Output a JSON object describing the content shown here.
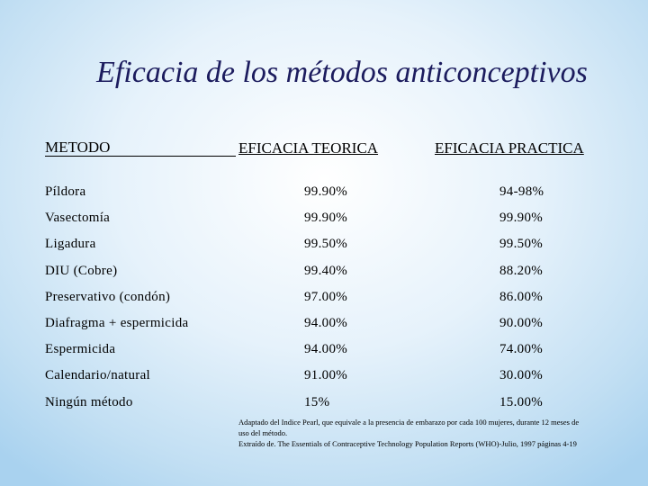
{
  "title": "Eficacia de los métodos anticonceptivos",
  "table": {
    "header": [
      "METODO",
      "EFICACIA TEORICA",
      "EFICACIA PRACTICA"
    ],
    "rows": [
      [
        "Píldora",
        "99.90%",
        "94-98%"
      ],
      [
        "Vasectomía",
        "99.90%",
        "99.90%"
      ],
      [
        "Ligadura",
        "99.50%",
        "99.50%"
      ],
      [
        "DIU (Cobre)",
        "99.40%",
        "88.20%"
      ],
      [
        "Preservativo (condón)",
        "97.00%",
        "86.00%"
      ],
      [
        "Diafragma + espermicida",
        "94.00%",
        "90.00%"
      ],
      [
        "Espermicida",
        "94.00%",
        "74.00%"
      ],
      [
        "Calendario/natural",
        "91.00%",
        "30.00%"
      ],
      [
        "Ningún método",
        "15%",
        "15.00%"
      ]
    ]
  },
  "footnote": [
    "Adaptado del Indice Pearl, que equivale a la presencia de embarazo por cada 100 mujeres, durante 12 meses de uso del método.",
    "Extraído de. The Essentials of Contraceptive Technology Population Reports (WHO)-Julio, 1997 páginas 4-19"
  ]
}
